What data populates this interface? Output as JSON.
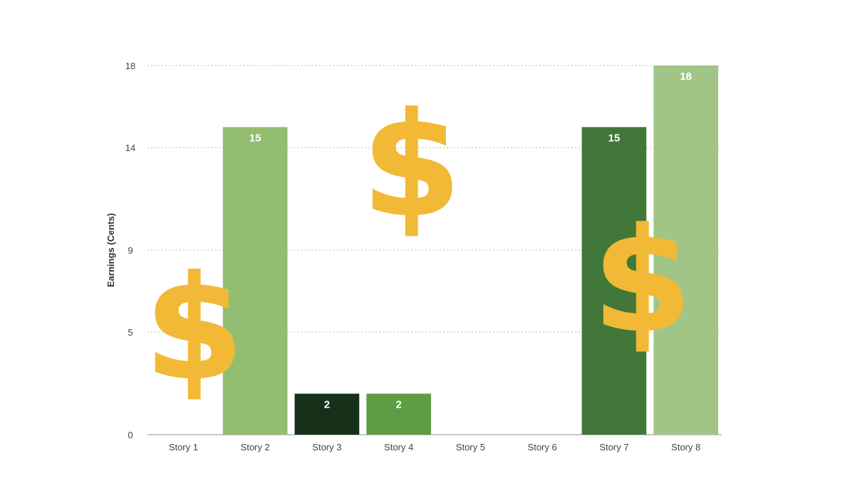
{
  "chart_data": {
    "type": "bar",
    "categories": [
      "Story 1",
      "Story 2",
      "Story 3",
      "Story 4",
      "Story 5",
      "Story 6",
      "Story 7",
      "Story 8"
    ],
    "values": [
      0,
      15,
      2,
      2,
      0,
      0,
      15,
      18
    ],
    "data_labels": [
      "",
      "15",
      "2",
      "2",
      "",
      "",
      "15",
      "18"
    ],
    "bar_colors": [
      "#8cba6a",
      "#93be72",
      "#16301a",
      "#5f9d45",
      "#8cba6a",
      "#8cba6a",
      "#41783a",
      "#a1c587"
    ],
    "yticks": [
      0,
      5,
      9,
      14,
      18
    ],
    "ylim": [
      0,
      18
    ],
    "ylabel": "Earnings (Cents)",
    "xlabel": "",
    "title": "",
    "grid": "horizontal-dotted"
  },
  "decorations": {
    "symbol": "$",
    "color": "#f2b936",
    "count": 3
  }
}
